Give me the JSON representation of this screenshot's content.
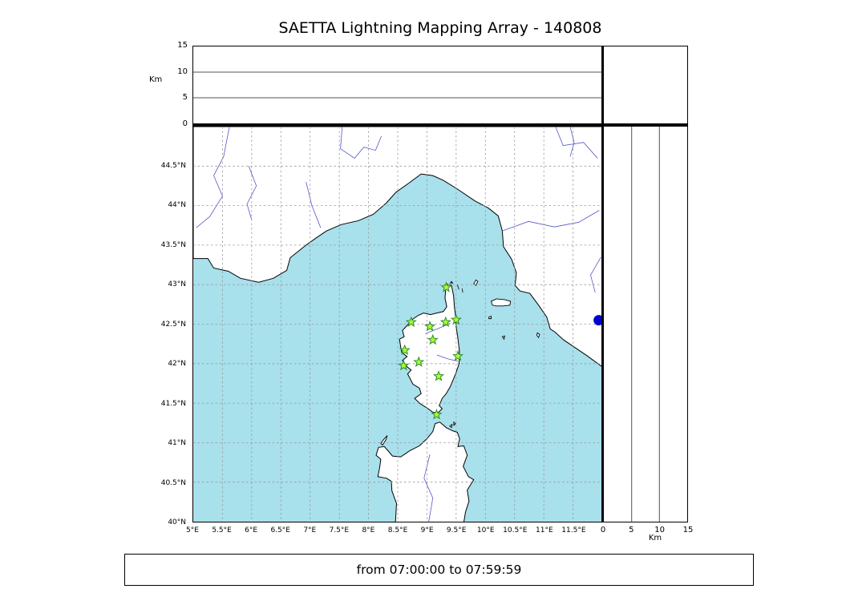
{
  "title": "SAETTA Lightning Mapping Array - 140808",
  "time_range": "from 07:00:00 to 07:59:59",
  "axes": {
    "top_panel": {
      "unit_label": "Km",
      "ticks": [
        "0",
        "5",
        "10",
        "15"
      ]
    },
    "right_panel": {
      "unit_label": "Km",
      "ticks": [
        "0",
        "5",
        "10",
        "15"
      ]
    },
    "map": {
      "lat_ticks": [
        "40°N",
        "40.5°N",
        "41°N",
        "41.5°N",
        "42°N",
        "42.5°N",
        "43°N",
        "43.5°N",
        "44°N",
        "44.5°N"
      ],
      "lon_ticks": [
        "5°E",
        "5.5°E",
        "6°E",
        "6.5°E",
        "7°E",
        "7.5°E",
        "8°E",
        "8.5°E",
        "9°E",
        "9.5°E",
        "10°E",
        "10.5°E",
        "11°E",
        "11.5°E"
      ]
    }
  },
  "colors": {
    "sea": "#a8e0ec",
    "land": "#ffffff",
    "coastline": "#000000",
    "river": "#5656cc",
    "grid": "#999999",
    "station_fill": "#adff2f",
    "station_stroke": "#2e8b2e",
    "detector": "#0000cc"
  },
  "chart_data": {
    "type": "scatter",
    "title": "SAETTA Lightning Mapping Array - 140808",
    "map_panel": {
      "xlim_lon_e": [
        5,
        12
      ],
      "ylim_lat_n": [
        40,
        45
      ],
      "grid_step_deg": 0.5,
      "grid_style": "dashed"
    },
    "altitude_panels": {
      "unit": "Km",
      "range_km": [
        0,
        15
      ],
      "tick_values": [
        0,
        5,
        10,
        15
      ],
      "gridlines_km": [
        5,
        10
      ]
    },
    "stations": [
      {
        "lon": 9.33,
        "lat": 42.965
      },
      {
        "lon": 8.73,
        "lat": 42.525
      },
      {
        "lon": 9.05,
        "lat": 42.47
      },
      {
        "lon": 9.32,
        "lat": 42.525
      },
      {
        "lon": 9.5,
        "lat": 42.555
      },
      {
        "lon": 9.1,
        "lat": 42.3
      },
      {
        "lon": 8.62,
        "lat": 42.17
      },
      {
        "lon": 9.53,
        "lat": 42.095
      },
      {
        "lon": 8.6,
        "lat": 41.975
      },
      {
        "lon": 8.86,
        "lat": 42.02
      },
      {
        "lon": 9.2,
        "lat": 41.84
      },
      {
        "lon": 9.165,
        "lat": 41.355
      }
    ],
    "detector_point": {
      "lon": 11.94,
      "lat": 42.55
    },
    "time_range": "from 07:00:00 to 07:59:59"
  }
}
